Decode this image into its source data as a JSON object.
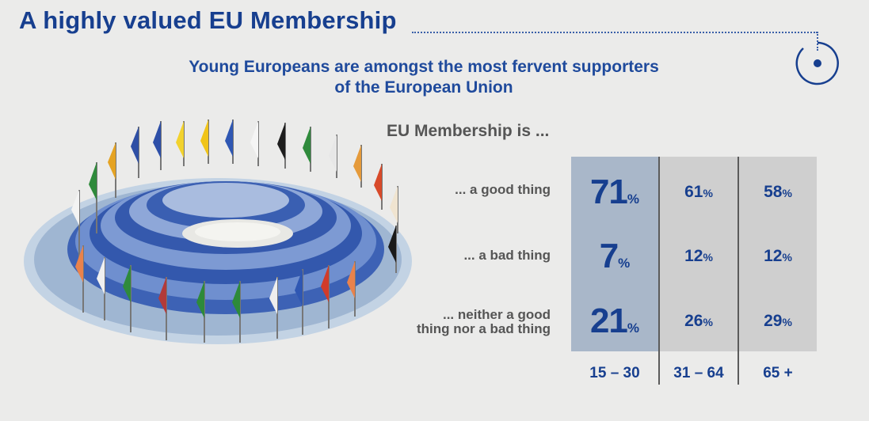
{
  "header": {
    "title": "A highly valued EU Membership",
    "subtitle_line1": "Young Europeans are amongst the most fervent supporters",
    "subtitle_line2": "of the European Union"
  },
  "icons": [
    "target-icon",
    "parliament-hemicycle-illustration"
  ],
  "colors": {
    "title_blue": "#173f8f",
    "youth_column": "#a9b7c9",
    "other_columns": "#cfcfcf",
    "background": "#ebebea"
  },
  "chart_data": {
    "type": "table",
    "title": "EU Membership is ...",
    "rows": [
      "... a good thing",
      "... a bad thing",
      "... neither a good thing nor a bad thing"
    ],
    "row_label_lines": [
      [
        "... a good thing"
      ],
      [
        "... a bad thing"
      ],
      [
        "... neither a good",
        "thing nor a bad thing"
      ]
    ],
    "age_groups": [
      "15 – 30",
      "31 – 64",
      "65 +"
    ],
    "unit": "%",
    "series": [
      {
        "name": "15 – 30",
        "values": [
          71,
          7,
          21
        ]
      },
      {
        "name": "31 – 64",
        "values": [
          61,
          12,
          26
        ]
      },
      {
        "name": "65 +",
        "values": [
          58,
          12,
          29
        ]
      }
    ]
  }
}
